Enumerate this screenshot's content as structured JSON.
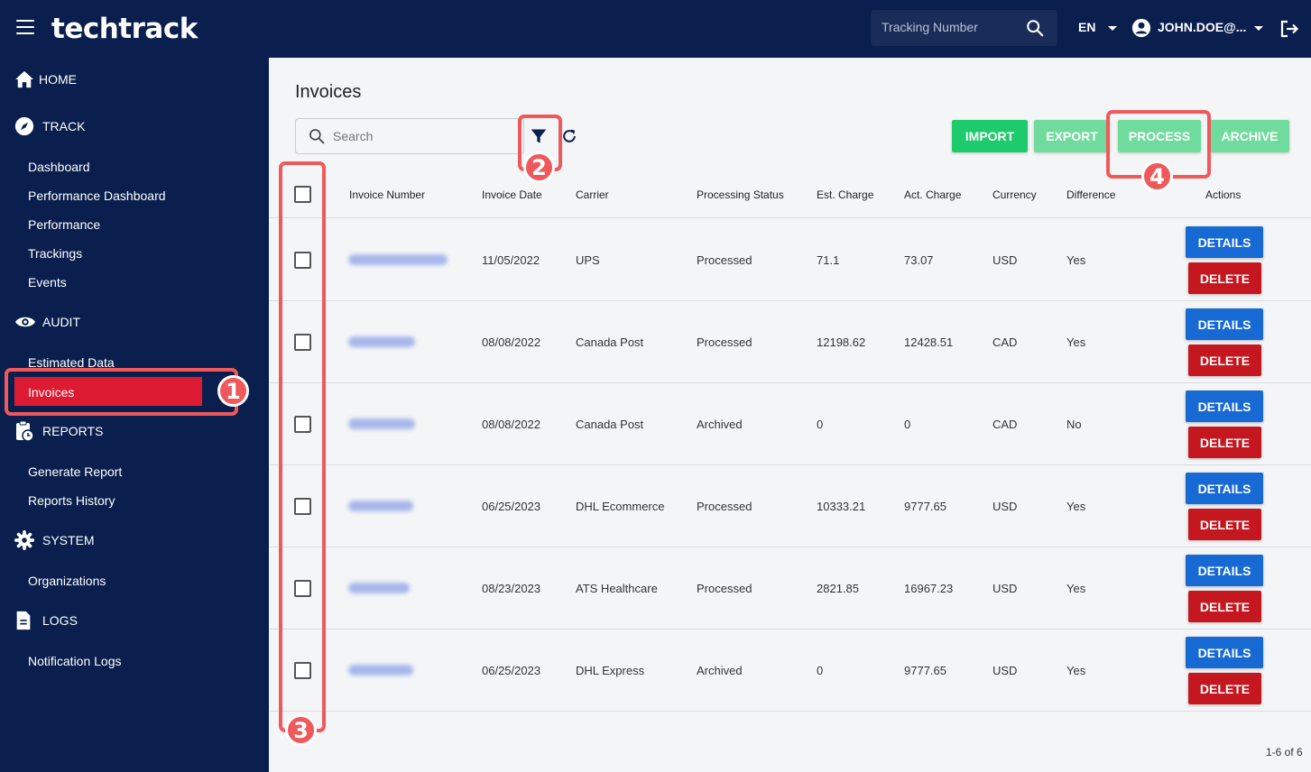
{
  "app": {
    "logo": "techtrack"
  },
  "topbar": {
    "tracking_placeholder": "Tracking Number",
    "language": "EN",
    "user": "JOHN.DOE@..."
  },
  "sidebar": {
    "home": "HOME",
    "track": {
      "label": "TRACK",
      "items": [
        "Dashboard",
        "Performance Dashboard",
        "Performance",
        "Trackings",
        "Events"
      ]
    },
    "audit": {
      "label": "AUDIT",
      "items": [
        "Estimated Data",
        "Invoices"
      ]
    },
    "reports": {
      "label": "REPORTS",
      "items": [
        "Generate Report",
        "Reports History"
      ]
    },
    "system": {
      "label": "SYSTEM",
      "items": [
        "Organizations"
      ]
    },
    "logs": {
      "label": "LOGS",
      "items": [
        "Notification Logs"
      ]
    },
    "active_item": "Invoices"
  },
  "main": {
    "title": "Invoices",
    "search_placeholder": "Search",
    "buttons": {
      "import": "IMPORT",
      "export": "EXPORT",
      "process": "PROCESS",
      "archive": "ARCHIVE"
    },
    "columns": [
      "Invoice Number",
      "Invoice Date",
      "Carrier",
      "Processing Status",
      "Est. Charge",
      "Act. Charge",
      "Currency",
      "Difference",
      "Actions"
    ],
    "rows": [
      {
        "date": "11/05/2022",
        "carrier": "UPS",
        "status": "Processed",
        "est": "71.1",
        "act": "73.07",
        "currency": "USD",
        "diff": "Yes"
      },
      {
        "date": "08/08/2022",
        "carrier": "Canada Post",
        "status": "Processed",
        "est": "12198.62",
        "act": "12428.51",
        "currency": "CAD",
        "diff": "Yes"
      },
      {
        "date": "08/08/2022",
        "carrier": "Canada Post",
        "status": "Archived",
        "est": "0",
        "act": "0",
        "currency": "CAD",
        "diff": "No"
      },
      {
        "date": "06/25/2023",
        "carrier": "DHL Ecommerce",
        "status": "Processed",
        "est": "10333.21",
        "act": "9777.65",
        "currency": "USD",
        "diff": "Yes"
      },
      {
        "date": "08/23/2023",
        "carrier": "ATS Healthcare",
        "status": "Processed",
        "est": "2821.85",
        "act": "16967.23",
        "currency": "USD",
        "diff": "Yes"
      },
      {
        "date": "06/25/2023",
        "carrier": "DHL Express",
        "status": "Archived",
        "est": "0",
        "act": "9777.65",
        "currency": "USD",
        "diff": "Yes"
      }
    ],
    "details_label": "DETAILS",
    "delete_label": "DELETE",
    "pagination": "1-6 of 6"
  },
  "callouts": [
    "1",
    "2",
    "3",
    "4"
  ],
  "colors": {
    "navy": "#0a1f4d",
    "active_red": "#dc1b32",
    "callout": "#f0595b",
    "details_blue": "#1769d3",
    "delete_red": "#c4171f",
    "import_green": "#1ecb6c",
    "disabled_green": "#6fdc9d"
  }
}
